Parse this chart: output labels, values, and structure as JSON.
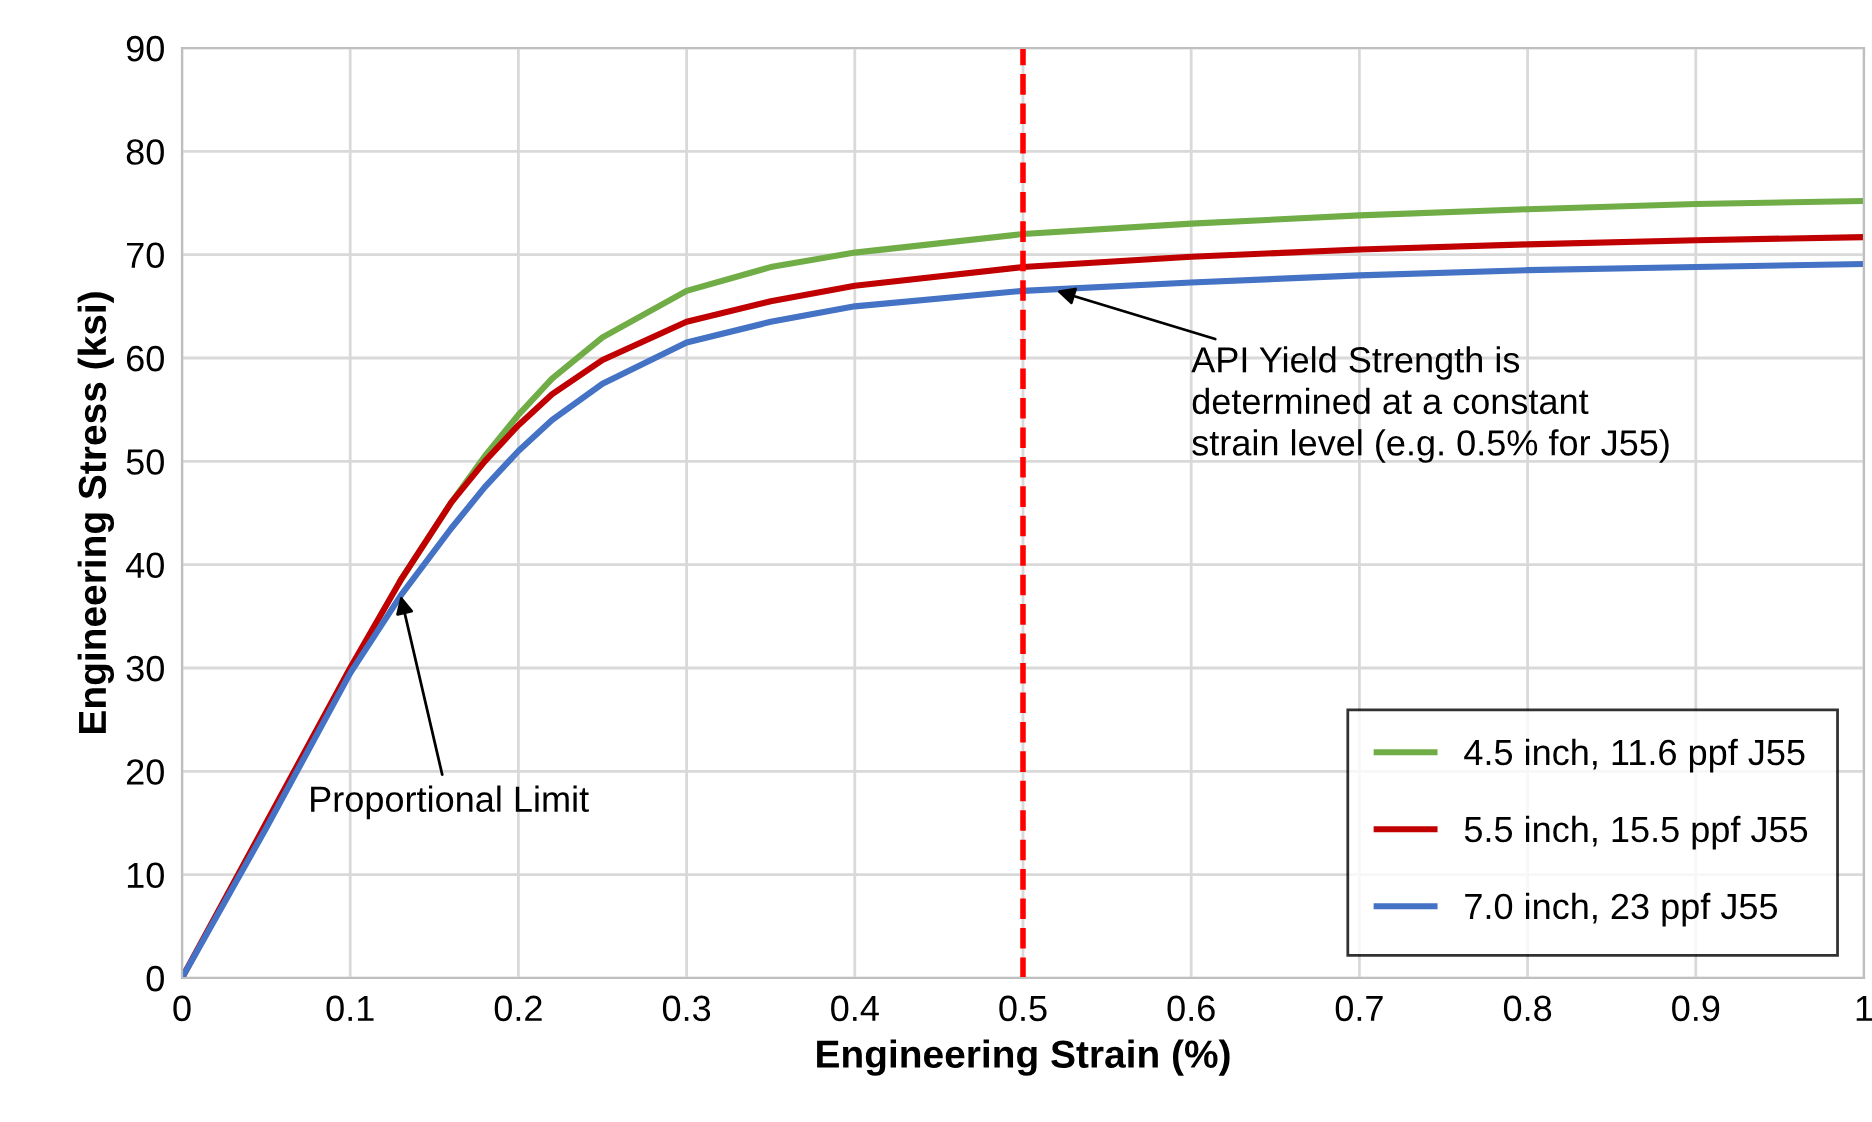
{
  "chart_data": {
    "type": "line",
    "xlabel": "Engineering Strain (%)",
    "ylabel": "Engineering Stress (ksi)",
    "xlim": [
      0,
      1
    ],
    "xticks": [
      0,
      0.1,
      0.2,
      0.3,
      0.4,
      0.5,
      0.6,
      0.7,
      0.8,
      0.9,
      1
    ],
    "ylim": [
      0,
      90
    ],
    "yticks": [
      0,
      10,
      20,
      30,
      40,
      50,
      60,
      70,
      80,
      90
    ],
    "grid": true,
    "legend": "bottom right",
    "marker": "none",
    "line_style": "solid",
    "series": [
      {
        "name": "4.5 inch, 11.6 ppf J55",
        "color": "#70ad47",
        "x": [
          0.13,
          0.16,
          0.18,
          0.2,
          0.22,
          0.25,
          0.3,
          0.35,
          0.4,
          0.5,
          0.6,
          0.7,
          0.8,
          0.9,
          1.0
        ],
        "values": [
          38.5,
          46,
          50.5,
          54.5,
          58,
          62,
          66.5,
          68.8,
          70.2,
          72,
          73,
          73.8,
          74.4,
          74.9,
          75.2
        ]
      },
      {
        "name": "5.5 inch, 15.5 ppf J55",
        "color": "#c00000",
        "x": [
          0,
          0.05,
          0.1,
          0.13,
          0.16,
          0.18,
          0.2,
          0.22,
          0.25,
          0.3,
          0.35,
          0.4,
          0.5,
          0.6,
          0.7,
          0.8,
          0.9,
          1.0
        ],
        "values": [
          0,
          15,
          30,
          38.5,
          46,
          50,
          53.5,
          56.5,
          59.8,
          63.5,
          65.5,
          67,
          68.8,
          69.8,
          70.5,
          71,
          71.4,
          71.7
        ]
      },
      {
        "name": "7.0 inch, 23 ppf J55",
        "color": "#4472c4",
        "x": [
          0,
          0.05,
          0.1,
          0.13,
          0.16,
          0.18,
          0.2,
          0.22,
          0.25,
          0.3,
          0.35,
          0.4,
          0.5,
          0.6,
          0.7,
          0.8,
          0.9,
          1.0
        ],
        "values": [
          0,
          14.5,
          29.5,
          37,
          43.5,
          47.5,
          51,
          54,
          57.5,
          61.5,
          63.5,
          65,
          66.5,
          67.3,
          68,
          68.5,
          68.8,
          69.1
        ]
      }
    ],
    "ref_lines": [
      {
        "axis": "x",
        "value": 0.5,
        "color": "#ff0000",
        "line_style": "dashed"
      }
    ],
    "annotations": [
      {
        "text": "Proportional Limit",
        "x": 0.13,
        "y": 37
      },
      {
        "text": "API Yield Strength is\ndetermined at a constant\nstrain level (e.g. 0.5% for J55)",
        "x": 0.52,
        "y": 66.5
      }
    ]
  }
}
